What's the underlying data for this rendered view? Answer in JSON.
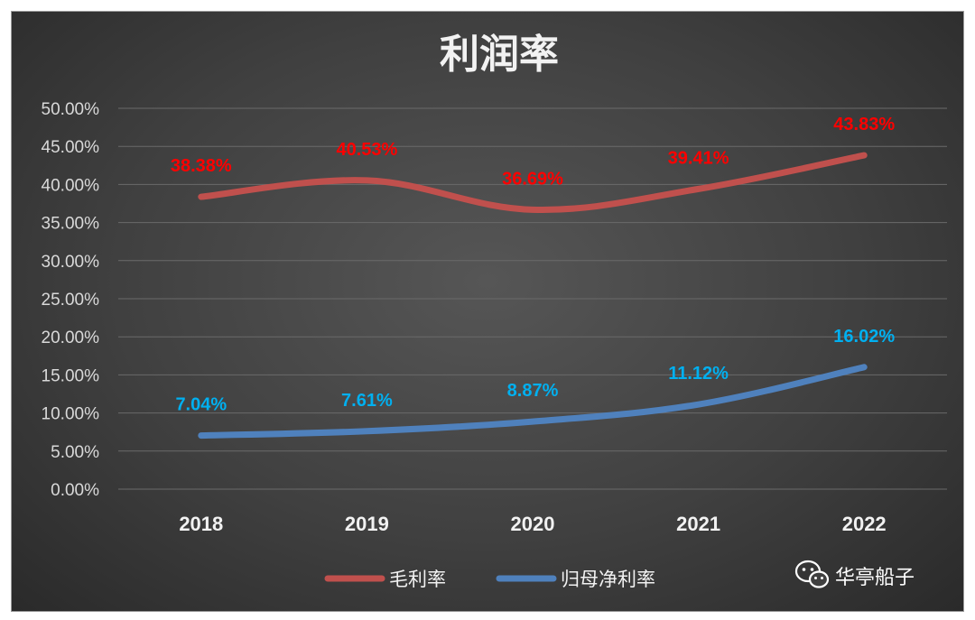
{
  "chart_data": {
    "type": "line",
    "title": "利润率",
    "categories": [
      "2018",
      "2019",
      "2020",
      "2021",
      "2022"
    ],
    "ylim": [
      0,
      0.5
    ],
    "yticks": [
      "0.00%",
      "5.00%",
      "10.00%",
      "15.00%",
      "20.00%",
      "25.00%",
      "30.00%",
      "35.00%",
      "40.00%",
      "45.00%",
      "50.00%"
    ],
    "grid": true,
    "legend_position": "bottom",
    "series": [
      {
        "name": "毛利率",
        "color": "#c0504d",
        "label_color": "#ff0000",
        "values": [
          0.3838,
          0.4053,
          0.3669,
          0.3941,
          0.4383
        ],
        "labels": [
          "38.38%",
          "40.53%",
          "36.69%",
          "39.41%",
          "43.83%"
        ]
      },
      {
        "name": "归母净利率",
        "color": "#4f81bd",
        "label_color": "#00b0f0",
        "values": [
          0.0704,
          0.0761,
          0.0887,
          0.1112,
          0.1602
        ],
        "labels": [
          "7.04%",
          "7.61%",
          "8.87%",
          "11.12%",
          "16.02%"
        ]
      }
    ]
  },
  "watermark": {
    "icon": "wechat-icon",
    "text": "华亭船子"
  }
}
